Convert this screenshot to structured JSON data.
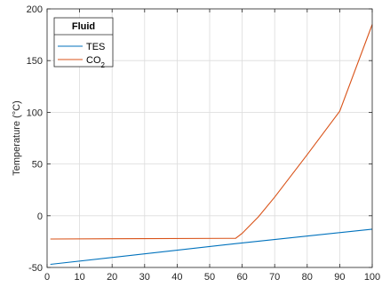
{
  "chart_data": {
    "type": "line",
    "xlabel": "",
    "ylabel": "Temperature (°C)",
    "xlim": [
      0,
      100
    ],
    "ylim": [
      -50,
      200
    ],
    "xticks": [
      0,
      10,
      20,
      30,
      40,
      50,
      60,
      70,
      80,
      90,
      100
    ],
    "yticks": [
      -50,
      0,
      50,
      100,
      150,
      200
    ],
    "grid": true,
    "legend": {
      "title": "Fluid",
      "placement": "top-left",
      "entries": [
        {
          "label": "TES",
          "sub": ""
        },
        {
          "label": "CO",
          "sub": "2"
        }
      ]
    },
    "series": [
      {
        "name": "TES",
        "color": "#0072bd",
        "x": [
          1,
          58,
          100
        ],
        "y": [
          -47,
          -27,
          -13
        ]
      },
      {
        "name": "CO2",
        "color": "#d95319",
        "x": [
          1,
          30,
          58,
          60,
          65,
          70,
          80,
          90,
          100
        ],
        "y": [
          -22.5,
          -22.2,
          -21.8,
          -17,
          -1,
          18,
          59,
          101,
          185
        ]
      }
    ]
  }
}
